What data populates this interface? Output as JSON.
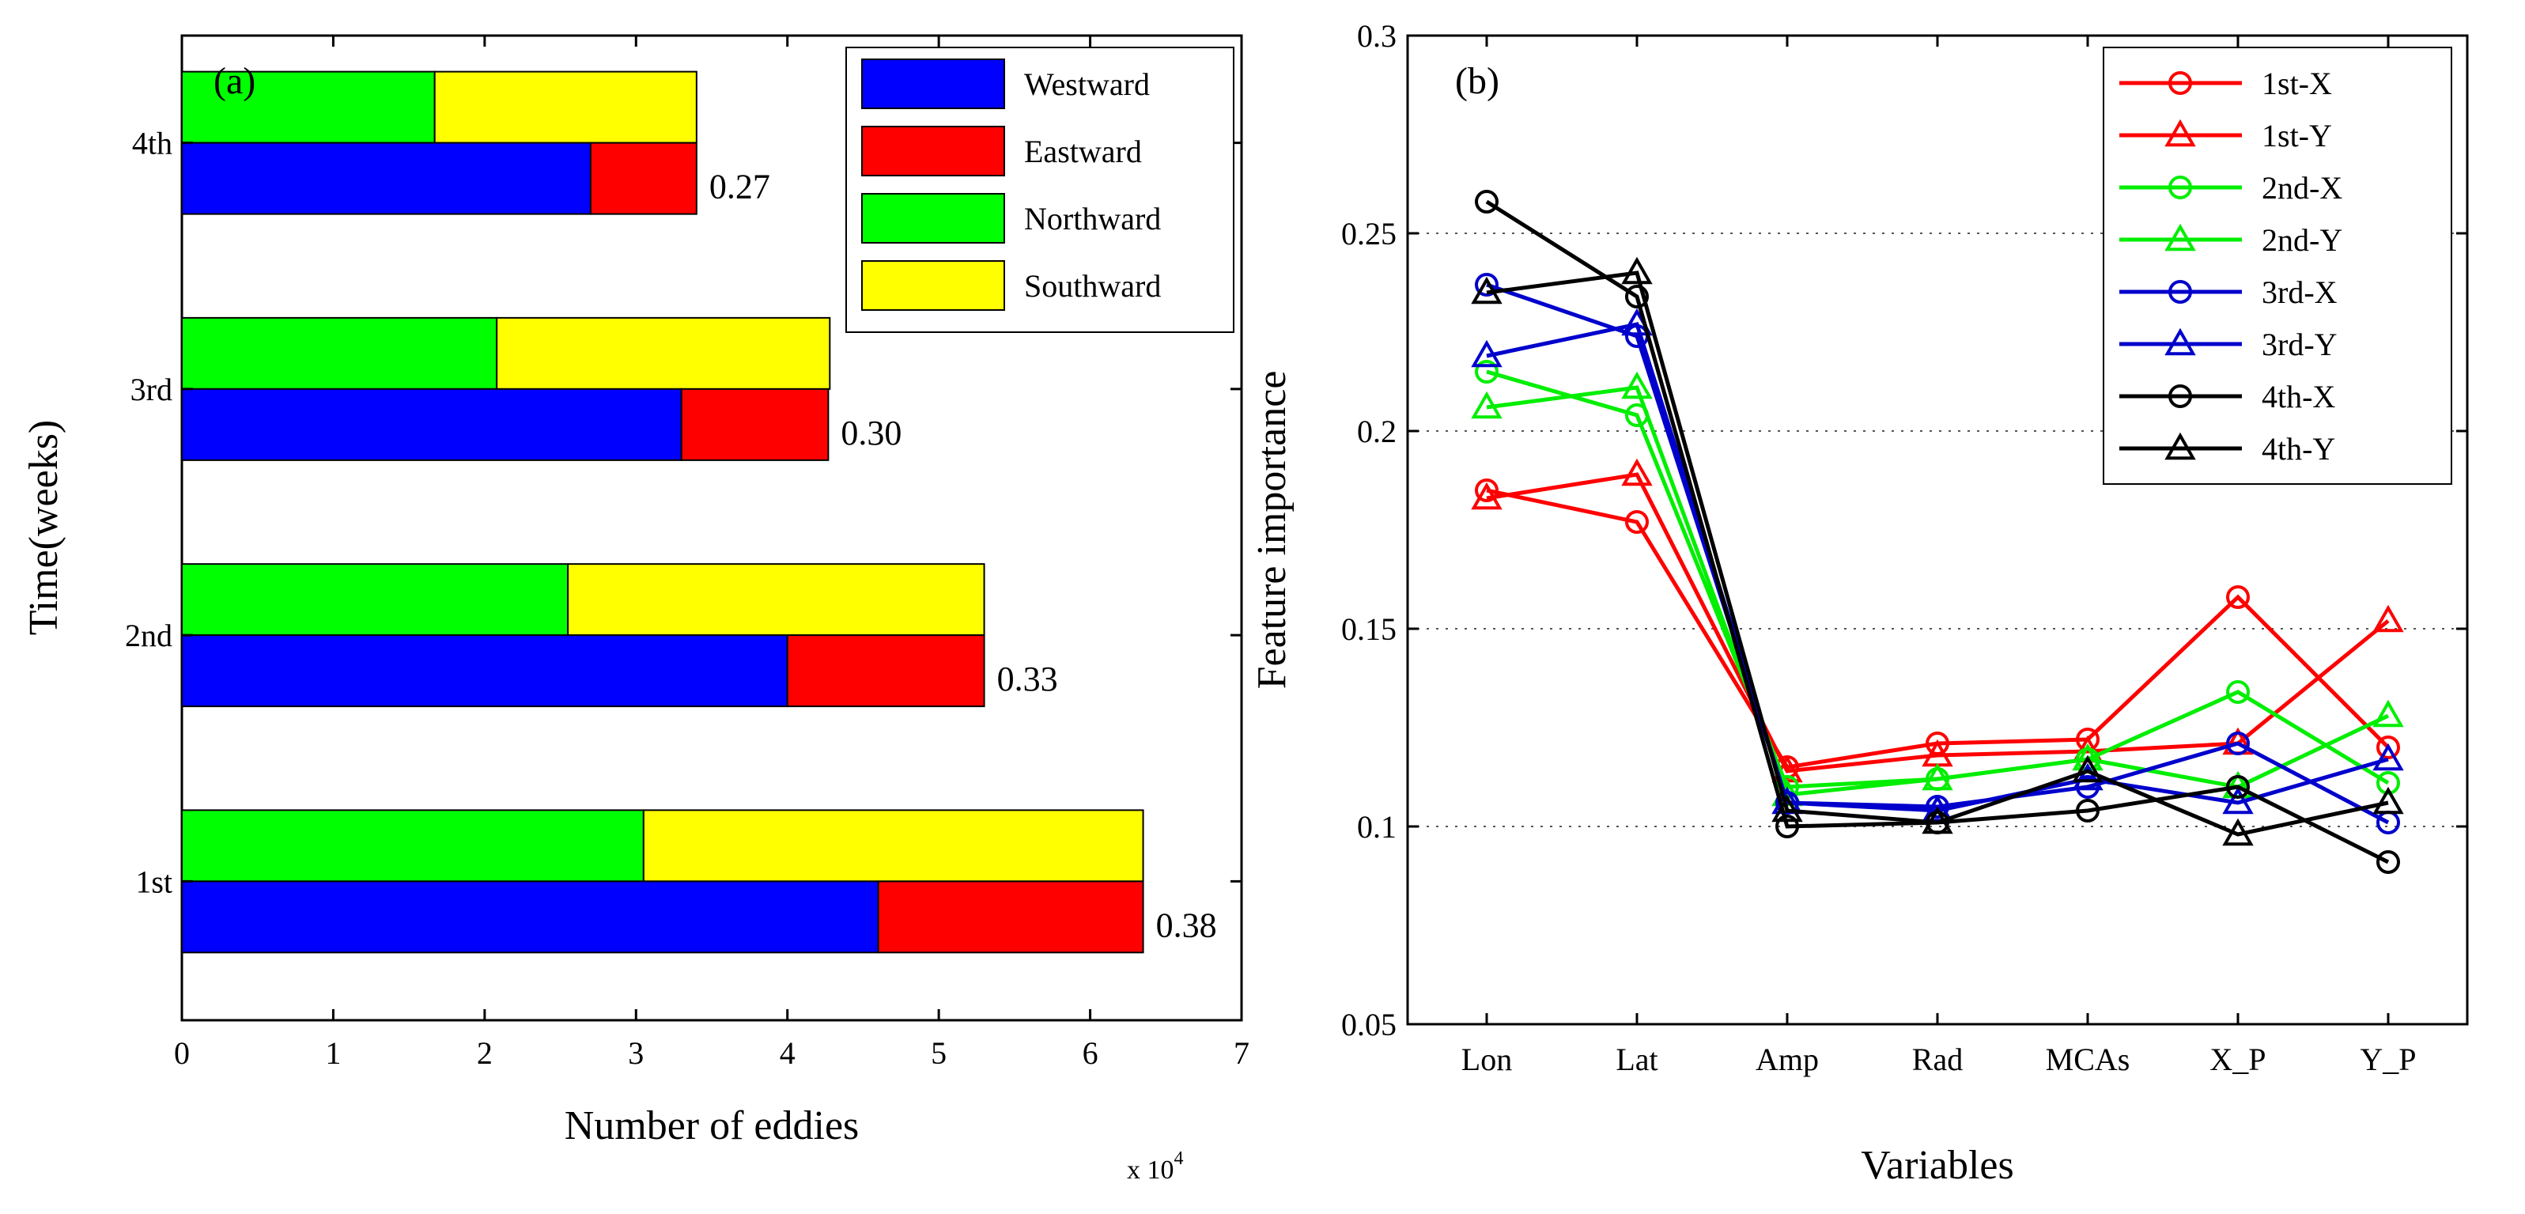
{
  "chart_data": [
    {
      "type": "bar",
      "orientation": "horizontal",
      "stacked": true,
      "panel_label": "(a)",
      "xlabel": "Number of eddies",
      "ylabel": "Time(weeks)",
      "x_multiplier": "x 10",
      "x_multiplier_exp": "4",
      "xlim": [
        0,
        7
      ],
      "x_ticks": [
        "0",
        "1",
        "2",
        "3",
        "4",
        "5",
        "6",
        "7"
      ],
      "categories": [
        "1st",
        "2nd",
        "3rd",
        "4th"
      ],
      "series": [
        {
          "name": "Westward",
          "group": "lower",
          "color": "#0000ff",
          "values": [
            4.6,
            4.0,
            3.3,
            2.7
          ]
        },
        {
          "name": "Eastward",
          "group": "lower",
          "color": "#ff0000",
          "values": [
            1.75,
            1.3,
            0.97,
            0.7
          ]
        },
        {
          "name": "Northward",
          "group": "upper",
          "color": "#00ff00",
          "values": [
            3.05,
            2.55,
            2.08,
            1.67
          ]
        },
        {
          "name": "Southward",
          "group": "upper",
          "color": "#ffff00",
          "values": [
            3.3,
            2.75,
            2.2,
            1.73
          ]
        }
      ],
      "annotations": [
        "0.38",
        "0.33",
        "0.30",
        "0.27"
      ],
      "legend_position": "top-right"
    },
    {
      "type": "line",
      "panel_label": "(b)",
      "xlabel": "Variables",
      "ylabel": "Feature importance",
      "categories": [
        "Lon",
        "Lat",
        "Amp",
        "Rad",
        "MCAs",
        "X_P",
        "Y_P"
      ],
      "ylim": [
        0.05,
        0.3
      ],
      "y_ticks": [
        "0.05",
        "0.1",
        "0.15",
        "0.2",
        "0.25",
        "0.3"
      ],
      "grid": "horizontal-dotted",
      "legend_position": "top-right",
      "series": [
        {
          "name": "1st-X",
          "color": "#ff0000",
          "marker": "circle",
          "values": [
            0.185,
            0.177,
            0.115,
            0.121,
            0.122,
            0.158,
            0.12
          ]
        },
        {
          "name": "1st-Y",
          "color": "#ff0000",
          "marker": "triangle",
          "values": [
            0.183,
            0.189,
            0.114,
            0.118,
            0.119,
            0.121,
            0.152
          ]
        },
        {
          "name": "2nd-X",
          "color": "#00ee00",
          "marker": "circle",
          "values": [
            0.215,
            0.204,
            0.11,
            0.112,
            0.117,
            0.134,
            0.111
          ]
        },
        {
          "name": "2nd-Y",
          "color": "#00ee00",
          "marker": "triangle",
          "values": [
            0.206,
            0.211,
            0.108,
            0.112,
            0.117,
            0.11,
            0.128
          ]
        },
        {
          "name": "3rd-X",
          "color": "#0000cc",
          "marker": "circle",
          "values": [
            0.237,
            0.224,
            0.106,
            0.105,
            0.11,
            0.121,
            0.101
          ]
        },
        {
          "name": "3rd-Y",
          "color": "#0000cc",
          "marker": "triangle",
          "values": [
            0.219,
            0.227,
            0.106,
            0.104,
            0.112,
            0.106,
            0.117
          ]
        },
        {
          "name": "4th-X",
          "color": "#000000",
          "marker": "circle",
          "values": [
            0.258,
            0.234,
            0.1,
            0.101,
            0.104,
            0.11,
            0.091
          ]
        },
        {
          "name": "4th-Y",
          "color": "#000000",
          "marker": "triangle",
          "values": [
            0.235,
            0.24,
            0.104,
            0.101,
            0.114,
            0.098,
            0.106
          ]
        }
      ]
    }
  ]
}
